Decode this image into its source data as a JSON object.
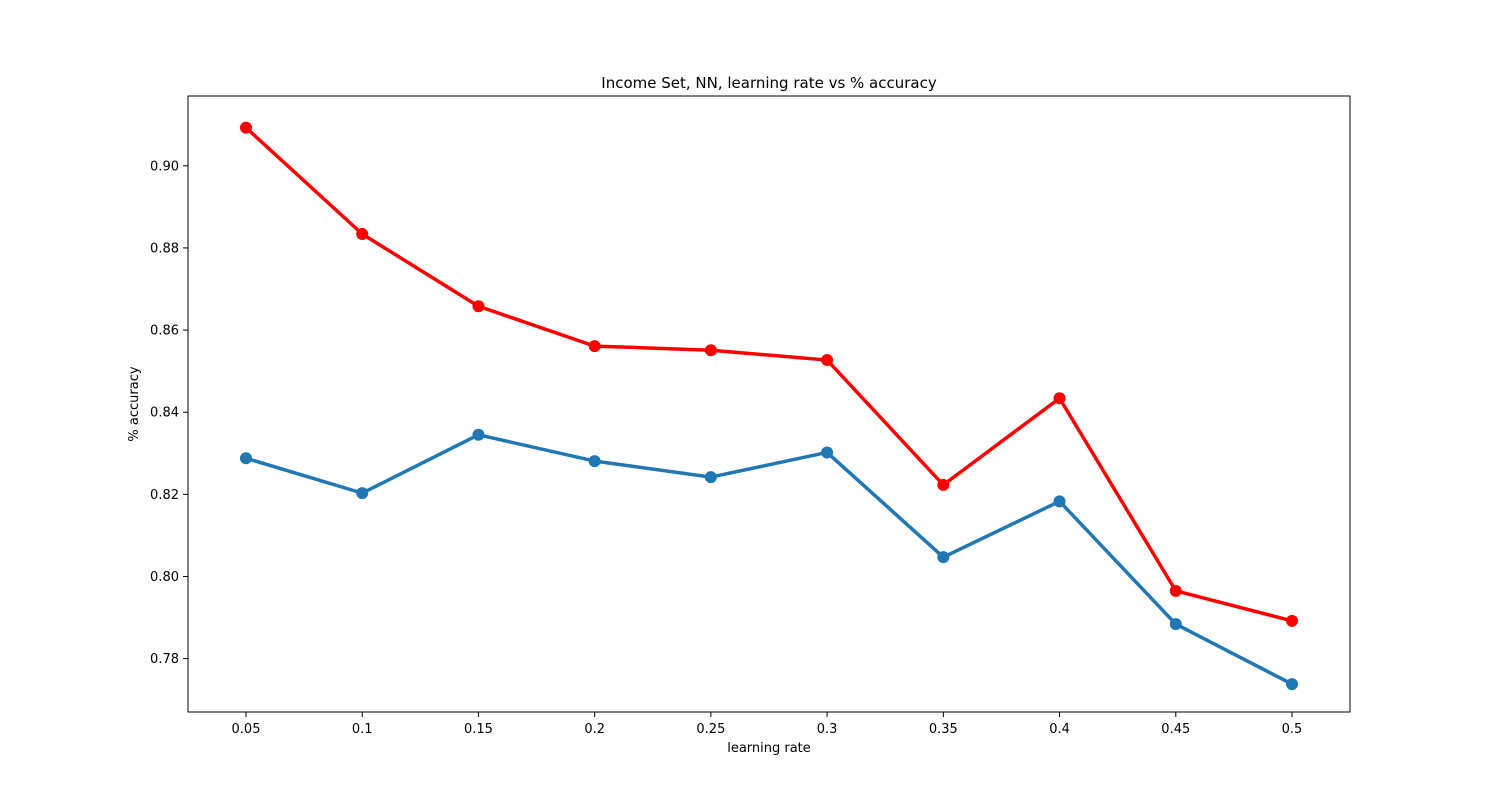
{
  "chart_data": {
    "type": "line",
    "title": "Income Set, NN, learning rate vs % accuracy",
    "xlabel": "learning rate",
    "ylabel": "% accuracy",
    "categories": [
      "0.05",
      "0.1",
      "0.15",
      "0.2",
      "0.25",
      "0.3",
      "0.35",
      "0.4",
      "0.45",
      "0.5"
    ],
    "ylim": [
      0.767,
      0.917
    ],
    "yticks": [
      0.78,
      0.8,
      0.82,
      0.84,
      0.86,
      0.88,
      0.9
    ],
    "ytick_labels": [
      "0.78",
      "0.80",
      "0.82",
      "0.84",
      "0.86",
      "0.88",
      "0.90"
    ],
    "grid": false,
    "series": [
      {
        "color": "#ff0000",
        "values": [
          0.9093,
          0.8834,
          0.8658,
          0.8561,
          0.8551,
          0.8527,
          0.8223,
          0.8434,
          0.7965,
          0.7892
        ]
      },
      {
        "color": "#1f77b4",
        "values": [
          0.8288,
          0.8203,
          0.8345,
          0.8281,
          0.8242,
          0.8302,
          0.8047,
          0.8183,
          0.7884,
          0.7738
        ]
      }
    ]
  }
}
